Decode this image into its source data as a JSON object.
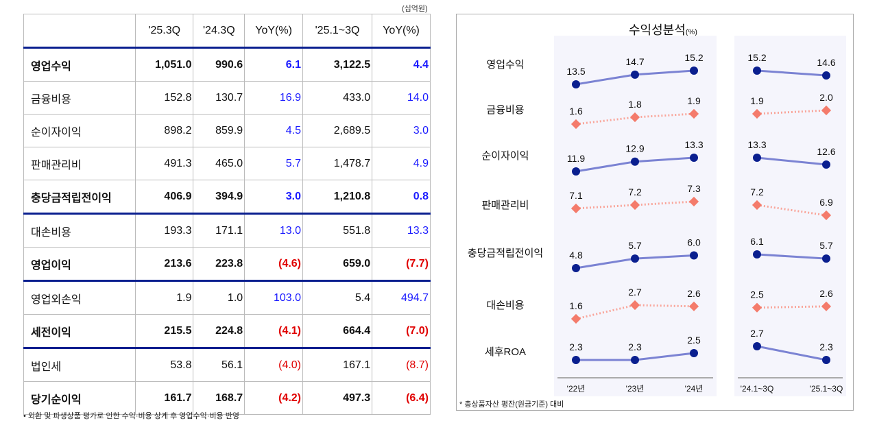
{
  "table": {
    "unit": "(십억원)",
    "headers": [
      "",
      "'25.3Q",
      "'24.3Q",
      "YoY(%)",
      "'25.1~3Q",
      "YoY(%)"
    ],
    "rows": [
      {
        "label": "영업수익",
        "values": [
          "1,051.0",
          "990.6",
          "6.1",
          "3,122.5",
          "4.4"
        ],
        "bold": true,
        "thick": true
      },
      {
        "label": "금융비용",
        "values": [
          "152.8",
          "130.7",
          "16.9",
          "433.0",
          "14.0"
        ]
      },
      {
        "label": "순이자이익",
        "values": [
          "898.2",
          "859.9",
          "4.5",
          "2,689.5",
          "3.0"
        ]
      },
      {
        "label": "판매관리비",
        "values": [
          "491.3",
          "465.0",
          "5.7",
          "1,478.7",
          "4.9"
        ]
      },
      {
        "label": "충당금적립전이익",
        "values": [
          "406.9",
          "394.9",
          "3.0",
          "1,210.8",
          "0.8"
        ],
        "bold": true
      },
      {
        "label": "대손비용",
        "values": [
          "193.3",
          "171.1",
          "13.0",
          "551.8",
          "13.3"
        ],
        "thick": true
      },
      {
        "label": "영업이익",
        "values": [
          "213.6",
          "223.8",
          "(4.6)",
          "659.0",
          "(7.7)"
        ],
        "bold": true
      },
      {
        "label": "영업외손익",
        "values": [
          "1.9",
          "1.0",
          "103.0",
          "5.4",
          "494.7"
        ],
        "thick": true
      },
      {
        "label": "세전이익",
        "values": [
          "215.5",
          "224.8",
          "(4.1)",
          "664.4",
          "(7.0)"
        ],
        "bold": true
      },
      {
        "label": "법인세",
        "values": [
          "53.8",
          "56.1",
          "(4.0)",
          "167.1",
          "(8.7)"
        ],
        "thick": true
      },
      {
        "label": "당기순이익",
        "values": [
          "161.7",
          "168.7",
          "(4.2)",
          "497.3",
          "(6.4)"
        ],
        "bold": true
      }
    ],
    "footnote": "• 외환 및 파생상품 평가로 인한 수익·비용 상계 후 영업수익·비용 반영"
  },
  "chart_data": {
    "type": "line",
    "title": "수익성분석",
    "unit": "(%)",
    "annual_categories": [
      "'22년",
      "'23년",
      "'24년"
    ],
    "ytd_categories": [
      "'24.1~3Q",
      "'25.1~3Q"
    ],
    "series": [
      {
        "name": "영업수익",
        "annual": [
          13.5,
          14.7,
          15.2
        ],
        "ytd": [
          15.2,
          14.6
        ],
        "style": "solid"
      },
      {
        "name": "금융비용",
        "annual": [
          1.6,
          1.8,
          1.9
        ],
        "ytd": [
          1.9,
          2.0
        ],
        "style": "dotted"
      },
      {
        "name": "순이자이익",
        "annual": [
          11.9,
          12.9,
          13.3
        ],
        "ytd": [
          13.3,
          12.6
        ],
        "style": "solid"
      },
      {
        "name": "판매관리비",
        "annual": [
          7.1,
          7.2,
          7.3
        ],
        "ytd": [
          7.2,
          6.9
        ],
        "style": "dotted"
      },
      {
        "name": "충당금적립전이익",
        "annual": [
          4.8,
          5.7,
          6.0
        ],
        "ytd": [
          6.1,
          5.7
        ],
        "style": "solid"
      },
      {
        "name": "대손비용",
        "annual": [
          1.6,
          2.7,
          2.6
        ],
        "ytd": [
          2.5,
          2.6
        ],
        "style": "dotted"
      },
      {
        "name": "세후ROA",
        "annual": [
          2.3,
          2.3,
          2.5
        ],
        "ytd": [
          2.7,
          2.3
        ],
        "style": "solid"
      }
    ],
    "colors": {
      "solid_line": "#7b83d3",
      "solid_marker": "#0a1f8f",
      "dotted_line": "#f9a59a",
      "dotted_marker": "#f47b6b",
      "panel_bg": "#f5f5fc"
    },
    "footnote": "* 총상품자산 평잔(원금기준) 대비"
  }
}
